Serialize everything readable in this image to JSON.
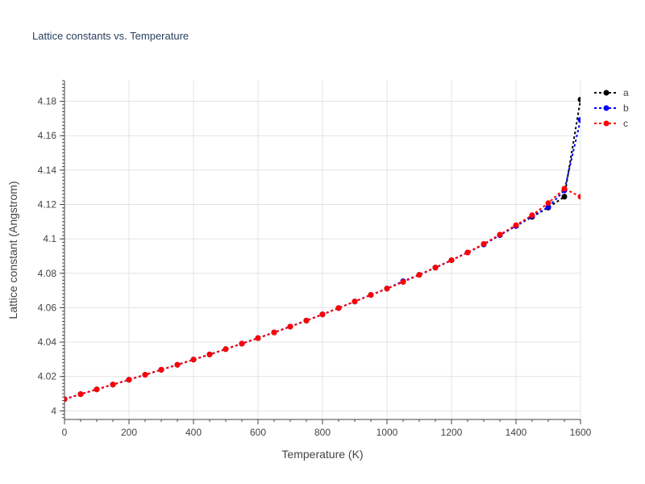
{
  "chart_data": {
    "type": "line",
    "title": "Lattice constants vs. Temperature",
    "xlabel": "Temperature (K)",
    "ylabel": "Lattice constant (Angstrom)",
    "xlim": [
      0,
      1600
    ],
    "ylim": [
      3.995,
      4.192
    ],
    "xticks": [
      0,
      200,
      400,
      600,
      800,
      1000,
      1200,
      1400,
      1600
    ],
    "xtick_labels": [
      "0",
      "200",
      "400",
      "600",
      "800",
      "1000",
      "1200",
      "1400",
      "1600"
    ],
    "yticks": [
      4.0,
      4.02,
      4.04,
      4.06,
      4.08,
      4.1,
      4.12,
      4.14,
      4.16,
      4.18
    ],
    "ytick_labels": [
      "4",
      "4.02",
      "4.04",
      "4.06",
      "4.08",
      "4.1",
      "4.12",
      "4.14",
      "4.16",
      "4.18"
    ],
    "grid": true,
    "legend_position": "top-right",
    "x": [
      0,
      50,
      100,
      150,
      200,
      250,
      300,
      350,
      400,
      450,
      500,
      550,
      600,
      650,
      700,
      750,
      800,
      850,
      900,
      950,
      1000,
      1050,
      1100,
      1150,
      1200,
      1250,
      1300,
      1350,
      1400,
      1450,
      1500,
      1550,
      1600
    ],
    "series": [
      {
        "name": "a",
        "color": "#000000",
        "values": [
          4.0068,
          4.0097,
          4.0125,
          4.0153,
          4.0181,
          4.021,
          4.0239,
          4.0268,
          4.0298,
          4.0328,
          4.0359,
          4.0391,
          4.0423,
          4.0456,
          4.049,
          4.0525,
          4.0561,
          4.0598,
          4.0636,
          4.0674,
          4.0711,
          4.075,
          4.0791,
          4.0833,
          4.0876,
          4.0921,
          4.0968,
          4.1022,
          4.1075,
          4.1128,
          4.1182,
          4.1245,
          4.181
        ]
      },
      {
        "name": "b",
        "color": "#0000ff",
        "values": [
          4.0068,
          4.0097,
          4.0125,
          4.0153,
          4.0181,
          4.021,
          4.0239,
          4.0268,
          4.0298,
          4.0328,
          4.0359,
          4.0391,
          4.0423,
          4.0456,
          4.049,
          4.0525,
          4.0561,
          4.0598,
          4.0636,
          4.0674,
          4.0711,
          4.0754,
          4.0791,
          4.0833,
          4.0876,
          4.0921,
          4.0968,
          4.1022,
          4.1075,
          4.1132,
          4.1185,
          4.1282,
          4.1692
        ]
      },
      {
        "name": "c",
        "color": "#ff0000",
        "values": [
          4.0068,
          4.0097,
          4.0125,
          4.0153,
          4.0181,
          4.021,
          4.0239,
          4.0268,
          4.0298,
          4.0328,
          4.0359,
          4.0391,
          4.0423,
          4.0456,
          4.049,
          4.0525,
          4.0561,
          4.0598,
          4.0636,
          4.0674,
          4.0711,
          4.075,
          4.0791,
          4.0833,
          4.0876,
          4.0921,
          4.0971,
          4.1025,
          4.108,
          4.1138,
          4.1208,
          4.1292,
          4.1245
        ]
      }
    ]
  }
}
